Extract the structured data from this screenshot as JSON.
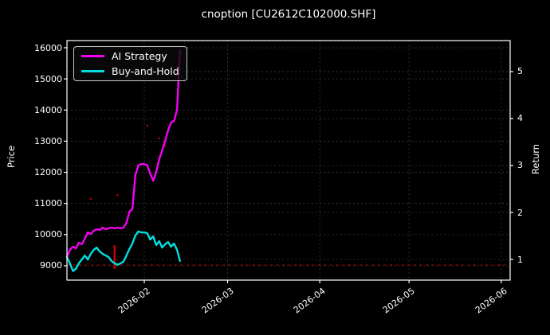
{
  "title": "cnoption [CU2612C102000.SHF]",
  "legend": {
    "items": [
      {
        "label": "AI Strategy",
        "color": "#f400f4"
      },
      {
        "label": "Buy-and-Hold",
        "color": "#00dede"
      }
    ]
  },
  "axes": {
    "left": {
      "label": "Price",
      "ticks": [
        9000,
        10000,
        11000,
        12000,
        13000,
        14000,
        15000,
        16000
      ]
    },
    "right": {
      "label": "Return",
      "ticks": [
        1,
        2,
        3,
        4,
        5
      ]
    },
    "bottom": {
      "ticks": [
        {
          "label": "2026-02",
          "date": "2026-02-01"
        },
        {
          "label": "2026-03",
          "date": "2026-03-01"
        },
        {
          "label": "2026-04",
          "date": "2026-04-01"
        },
        {
          "label": "2026-05",
          "date": "2026-05-01"
        },
        {
          "label": "2026-06",
          "date": "2026-06-01"
        }
      ]
    }
  },
  "colors": {
    "ai_strategy": "#f400f4",
    "buy_and_hold": "#00dede",
    "marker_red": "#e00000",
    "grid": "#3d3d3d",
    "spine": "#ffffff",
    "background": "#000000"
  },
  "chart_data": {
    "type": "line",
    "title": "cnoption [CU2612C102000.SHF]",
    "xlabel": "",
    "ylabel_left": "Price",
    "ylabel_right": "Return",
    "grid": true,
    "legend_position": "upper-left",
    "xlim": [
      "2026-01-06",
      "2026-06-04"
    ],
    "ylim_price": [
      8540,
      16230
    ],
    "ylim_return": [
      0.56,
      5.66
    ],
    "x": [
      "2026-01-06",
      "2026-01-07",
      "2026-01-08",
      "2026-01-09",
      "2026-01-10",
      "2026-01-11",
      "2026-01-12",
      "2026-01-13",
      "2026-01-14",
      "2026-01-15",
      "2026-01-16",
      "2026-01-17",
      "2026-01-18",
      "2026-01-19",
      "2026-01-20",
      "2026-01-21",
      "2026-01-22",
      "2026-01-23",
      "2026-01-24",
      "2026-01-25",
      "2026-01-26",
      "2026-01-27",
      "2026-01-28",
      "2026-01-29",
      "2026-01-30",
      "2026-01-31",
      "2026-02-01",
      "2026-02-02",
      "2026-02-03",
      "2026-02-04",
      "2026-02-05",
      "2026-02-06",
      "2026-02-07",
      "2026-02-08",
      "2026-02-09",
      "2026-02-10",
      "2026-02-11",
      "2026-02-12",
      "2026-02-13"
    ],
    "series": [
      {
        "name": "AI Strategy",
        "axis": "price",
        "color": "#f400f4",
        "values": [
          9280,
          9510,
          9610,
          9560,
          9740,
          9690,
          9870,
          10070,
          10020,
          10125,
          10175,
          10150,
          10225,
          10175,
          10200,
          10225,
          10200,
          10225,
          10200,
          10225,
          10380,
          10740,
          10820,
          11900,
          12230,
          12265,
          12265,
          12230,
          11950,
          11730,
          12000,
          12420,
          12700,
          13000,
          13350,
          13600,
          13650,
          14000,
          15900
        ]
      },
      {
        "name": "Buy-and-Hold",
        "axis": "price",
        "color": "#00dede",
        "values": [
          9280,
          9080,
          8830,
          8900,
          9080,
          9200,
          9330,
          9200,
          9380,
          9510,
          9585,
          9460,
          9380,
          9330,
          9280,
          9150,
          9080,
          9030,
          9080,
          9130,
          9330,
          9540,
          9715,
          9970,
          10100,
          10070,
          10070,
          10045,
          9840,
          9945,
          9665,
          9790,
          9585,
          9690,
          9765,
          9610,
          9715,
          9510,
          9155
        ]
      }
    ],
    "annotations": {
      "red_vline": {
        "date": "2026-01-22",
        "price_from": 8900,
        "price_to": 9660
      },
      "red_hline_price": 9025,
      "red_dots": [
        {
          "date": "2026-01-14",
          "price": 11150
        },
        {
          "date": "2026-01-23",
          "price": 11270
        },
        {
          "date": "2026-02-02",
          "price": 13500
        },
        {
          "date": "2026-02-06",
          "price": 13090
        },
        {
          "date": "2026-02-08",
          "price": 12860
        }
      ]
    }
  }
}
